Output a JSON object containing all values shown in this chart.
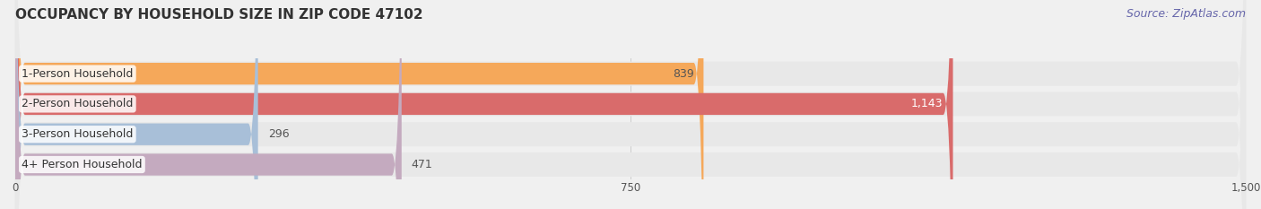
{
  "title": "OCCUPANCY BY HOUSEHOLD SIZE IN ZIP CODE 47102",
  "source": "Source: ZipAtlas.com",
  "categories": [
    "1-Person Household",
    "2-Person Household",
    "3-Person Household",
    "4+ Person Household"
  ],
  "values": [
    839,
    1143,
    296,
    471
  ],
  "bar_colors": [
    "#F5A85A",
    "#D96B6B",
    "#A8BFD8",
    "#C4AABF"
  ],
  "label_colors": [
    "#555555",
    "#555555",
    "#555555",
    "#555555"
  ],
  "value_colors": [
    "#555555",
    "#ffffff",
    "#555555",
    "#555555"
  ],
  "xlim": [
    0,
    1500
  ],
  "xticks": [
    0,
    750,
    1500
  ],
  "background_color": "#f0f0f0",
  "row_bg_color": "#e8e8e8",
  "title_fontsize": 11,
  "source_fontsize": 9,
  "label_fontsize": 9,
  "value_fontsize": 9
}
